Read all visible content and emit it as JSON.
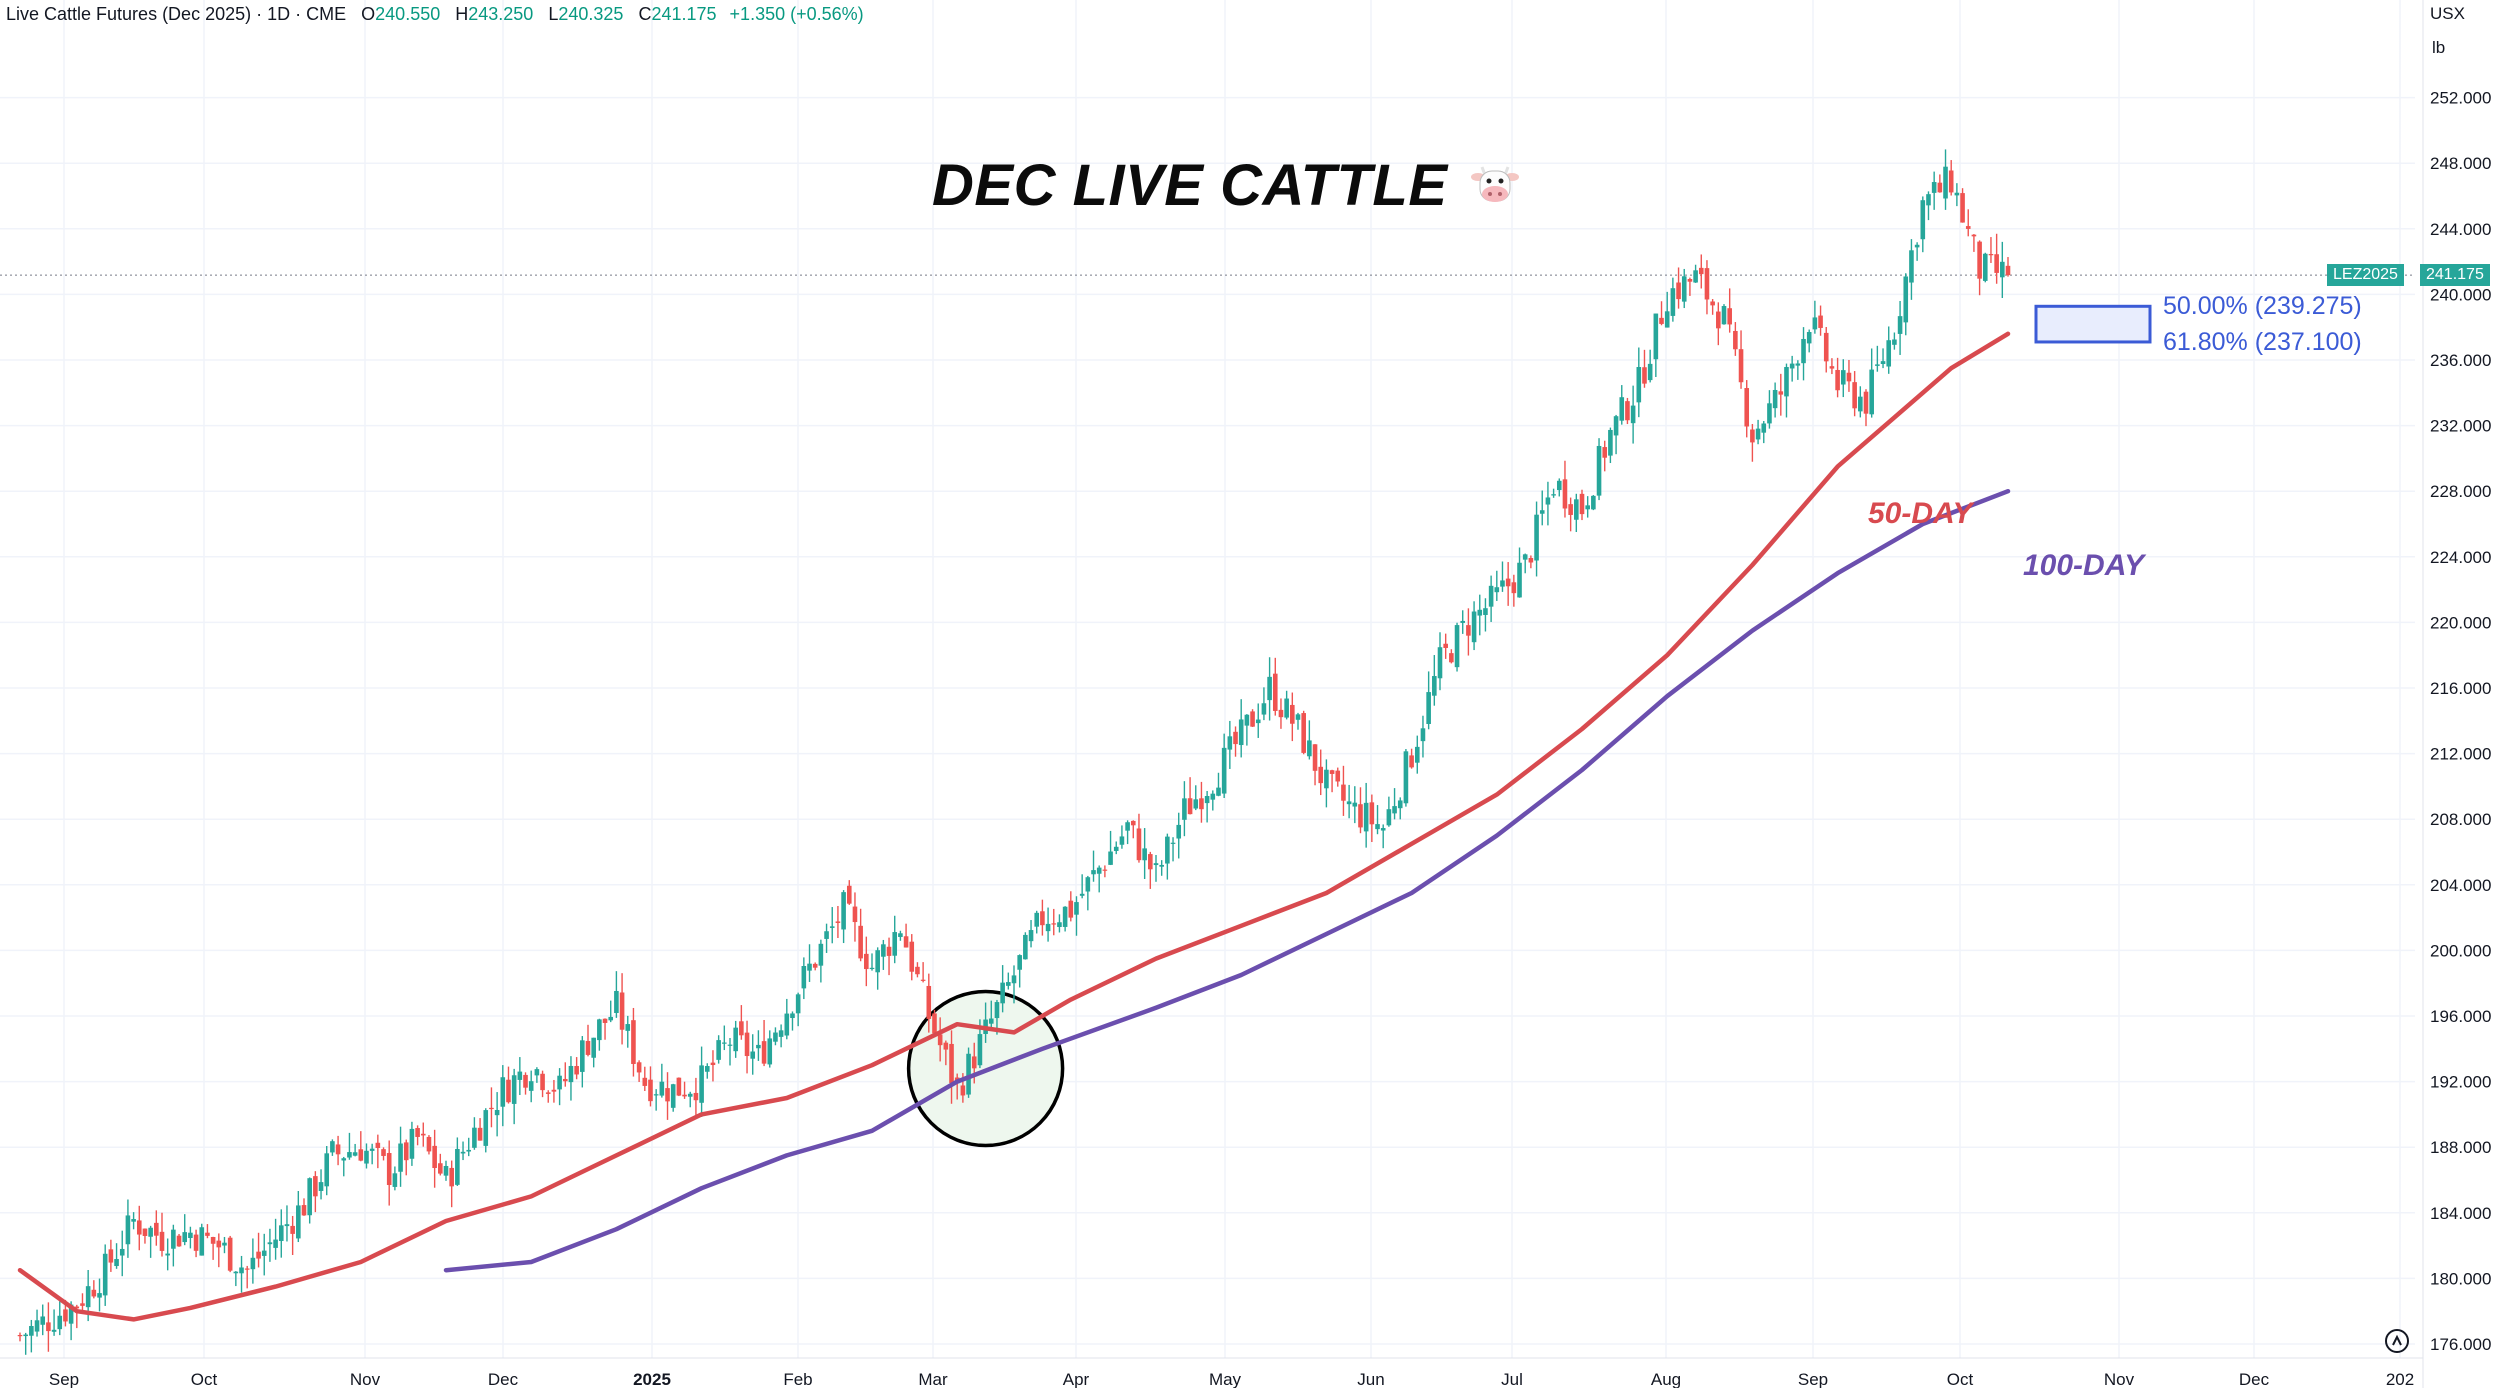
{
  "legend": {
    "symbol": "Live Cattle Futures (Dec 2025) · 1D · CME",
    "o_label": "O",
    "o_value": "240.550",
    "h_label": "H",
    "h_value": "243.250",
    "l_label": "L",
    "l_value": "240.325",
    "c_label": "C",
    "c_value": "241.175",
    "change": "+1.350 (+0.56%)"
  },
  "currency": "USX",
  "unit": "lb",
  "annotation_title": "DEC LIVE CATTLE",
  "icon": "cow-face-icon",
  "ma50_label": "50-DAY",
  "ma100_label": "100-DAY",
  "fib_50_label": "50.00% (239.275)",
  "fib_618_label": "61.80% (237.100)",
  "symbol_tag": "LEZ2025",
  "last_price_tag": "241.175",
  "colors": {
    "up": "#26a69a",
    "down": "#ef5350",
    "ma50": "#d84a4f",
    "ma100": "#6b4fae",
    "fib": "#3b5bd6",
    "fib_fill": "#e8edfd",
    "grid": "#f0f3fa",
    "circle_fill": "#eef7ee",
    "tag": "#26a69a"
  },
  "chart_data": {
    "type": "candlestick",
    "title": "DEC LIVE CATTLE",
    "ylim": [
      175,
      254
    ],
    "y_ticks": [
      "176.000",
      "180.000",
      "184.000",
      "188.000",
      "192.000",
      "196.000",
      "200.000",
      "204.000",
      "208.000",
      "212.000",
      "216.000",
      "220.000",
      "224.000",
      "228.000",
      "232.000",
      "236.000",
      "240.000",
      "244.000",
      "248.000",
      "252.000"
    ],
    "x_ticks": [
      "Sep",
      "Oct",
      "Nov",
      "Dec",
      "2025",
      "Feb",
      "Mar",
      "Apr",
      "May",
      "Jun",
      "Jul",
      "Aug",
      "Sep",
      "Oct",
      "Nov",
      "Dec",
      "202"
    ],
    "last_price": 241.175,
    "fib_levels": [
      239.275,
      237.1
    ],
    "closes_weekly": [
      176.5,
      177.5,
      178.5,
      180.5,
      183.5,
      182.5,
      182.8,
      182.0,
      180.5,
      182.5,
      184.5,
      187.5,
      188.0,
      186.5,
      188.5,
      186.0,
      189.0,
      191.5,
      193.0,
      191.5,
      194.5,
      196.5,
      192.0,
      191.5,
      192.0,
      194.5,
      193.5,
      196.5,
      199.5,
      202.5,
      199.0,
      201.5,
      196.0,
      191.5,
      195.0,
      198.5,
      202.0,
      202.5,
      205.0,
      207.5,
      204.5,
      208.5,
      210.5,
      213.0,
      216.0,
      213.5,
      210.0,
      208.5,
      207.5,
      212.0,
      217.5,
      220.0,
      221.5,
      223.5,
      228.5,
      227.0,
      231.5,
      234.5,
      240.0,
      241.0,
      238.5,
      231.5,
      234.0,
      238.5,
      234.5,
      233.5,
      238.0,
      245.5,
      247.0,
      241.5,
      241.2
    ],
    "ma50": [
      [
        0,
        180.5
      ],
      [
        2,
        178.0
      ],
      [
        4,
        177.5
      ],
      [
        6,
        178.2
      ],
      [
        9,
        179.5
      ],
      [
        12,
        181.0
      ],
      [
        15,
        183.5
      ],
      [
        18,
        185.0
      ],
      [
        21,
        187.5
      ],
      [
        24,
        190.0
      ],
      [
        27,
        191.0
      ],
      [
        30,
        193.0
      ],
      [
        33,
        195.5
      ],
      [
        35,
        195.0
      ],
      [
        37,
        197.0
      ],
      [
        40,
        199.5
      ],
      [
        43,
        201.5
      ],
      [
        46,
        203.5
      ],
      [
        49,
        206.5
      ],
      [
        52,
        209.5
      ],
      [
        55,
        213.5
      ],
      [
        58,
        218.0
      ],
      [
        61,
        223.5
      ],
      [
        64,
        229.5
      ],
      [
        66,
        232.5
      ],
      [
        68,
        235.5
      ],
      [
        70,
        237.6
      ]
    ],
    "ma100": [
      [
        15,
        180.5
      ],
      [
        18,
        181.0
      ],
      [
        21,
        183.0
      ],
      [
        24,
        185.5
      ],
      [
        27,
        187.5
      ],
      [
        30,
        189.0
      ],
      [
        33,
        192.0
      ],
      [
        36,
        194.0
      ],
      [
        40,
        196.5
      ],
      [
        43,
        198.5
      ],
      [
        46,
        201.0
      ],
      [
        49,
        203.5
      ],
      [
        52,
        207.0
      ],
      [
        55,
        211.0
      ],
      [
        58,
        215.5
      ],
      [
        61,
        219.5
      ],
      [
        64,
        223.0
      ],
      [
        67,
        226.0
      ],
      [
        70,
        228.0
      ]
    ],
    "highlight_circle": {
      "week": 34,
      "value": 192.8
    }
  }
}
